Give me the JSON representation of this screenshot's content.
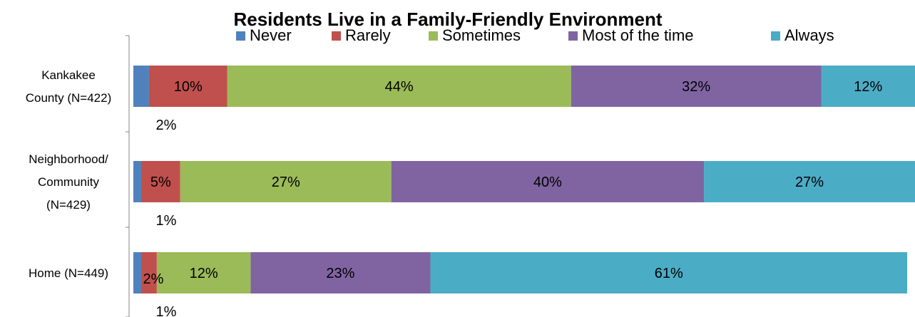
{
  "chart_data": {
    "type": "bar",
    "orientation": "horizontal",
    "stacked": true,
    "percent_stacked": true,
    "title": "Residents Live in a Family-Friendly Environment",
    "xlabel": "",
    "ylabel": "",
    "xlim": [
      0,
      100
    ],
    "grid": false,
    "legend_position": "top",
    "categories": [
      "Kankakee County (N=422)",
      "Neighborhood/ Community (N=429)",
      "Home (N=449)"
    ],
    "category_label_lines": [
      [
        "Kankakee",
        "County (N=422)"
      ],
      [
        "Neighborhood/",
        "Community",
        "(N=429)"
      ],
      [
        "Home (N=449)"
      ]
    ],
    "series": [
      {
        "name": "Never",
        "color": "#4F81BD",
        "values": [
          2,
          1,
          1
        ],
        "labels": [
          "2%",
          "1%",
          "1%"
        ]
      },
      {
        "name": "Rarely",
        "color": "#C0504D",
        "values": [
          10,
          5,
          2
        ],
        "labels": [
          "10%",
          "5%",
          "2%"
        ]
      },
      {
        "name": "Sometimes",
        "color": "#9BBB59",
        "values": [
          44,
          27,
          12
        ],
        "labels": [
          "44%",
          "27%",
          "12%"
        ]
      },
      {
        "name": "Most of the time",
        "color": "#8064A2",
        "values": [
          32,
          40,
          23
        ],
        "labels": [
          "32%",
          "40%",
          "23%"
        ]
      },
      {
        "name": "Always",
        "color": "#4BACC6",
        "values": [
          12,
          27,
          61
        ],
        "labels": [
          "12%",
          "27%",
          "61%"
        ]
      }
    ]
  }
}
